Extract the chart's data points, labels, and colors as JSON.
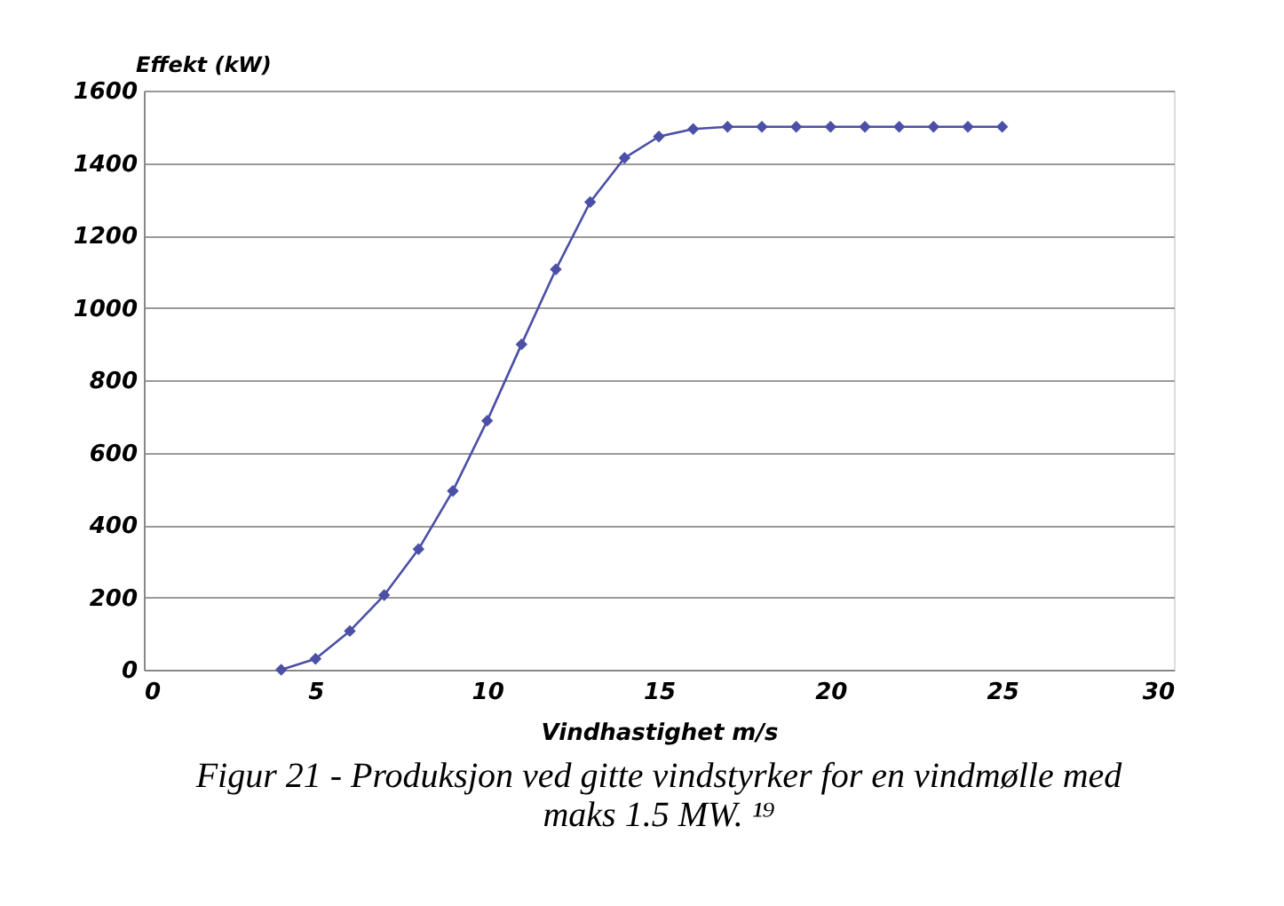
{
  "chart_data": {
    "type": "line",
    "title": "Figur 21 - Produksjon ved gitte vindstyrker for en vindmølle med maks 1.5 MW. ¹⁹",
    "xlabel": "Vindhastighet m/s",
    "ylabel": "Effekt (kW)",
    "x": [
      4,
      5,
      6,
      7,
      8,
      9,
      10,
      11,
      12,
      13,
      14,
      15,
      16,
      17,
      18,
      19,
      20,
      21,
      22,
      23,
      24,
      25
    ],
    "series": [
      {
        "color": "#4b4fa6",
        "values": [
          0,
          30,
          107,
          206,
          333,
          494,
          688,
          899,
          1106,
          1292,
          1414,
          1473,
          1494,
          1500,
          1500,
          1500,
          1500,
          1500,
          1500,
          1500,
          1500,
          1500
        ]
      }
    ],
    "xlim": [
      0,
      30
    ],
    "xticks": [
      0,
      5,
      10,
      15,
      20,
      25,
      30
    ],
    "ylim": [
      0,
      1600
    ],
    "yticks": [
      0,
      200,
      400,
      600,
      800,
      1000,
      1200,
      1400,
      1600
    ],
    "grid": "y",
    "marker": "diamond",
    "line_style": "solid"
  }
}
